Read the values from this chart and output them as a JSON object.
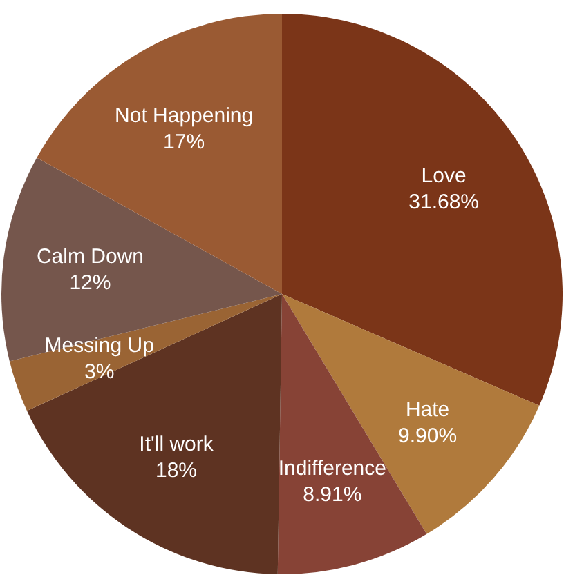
{
  "chart_data": {
    "type": "pie",
    "categories": [
      "Love",
      "Hate",
      "Indifference",
      "It'll work",
      "Messing Up",
      "Calm Down",
      "Not Happening"
    ],
    "values": [
      31.68,
      9.9,
      8.91,
      18,
      3,
      12,
      17
    ],
    "value_labels": [
      "31.68%",
      "9.90%",
      "8.91%",
      "18%",
      "3%",
      "12%",
      "17%"
    ],
    "colors": [
      "#7b3518",
      "#b07a3c",
      "#874336",
      "#5e3322",
      "#9a6434",
      "#75564c",
      "#9a5a33"
    ]
  }
}
